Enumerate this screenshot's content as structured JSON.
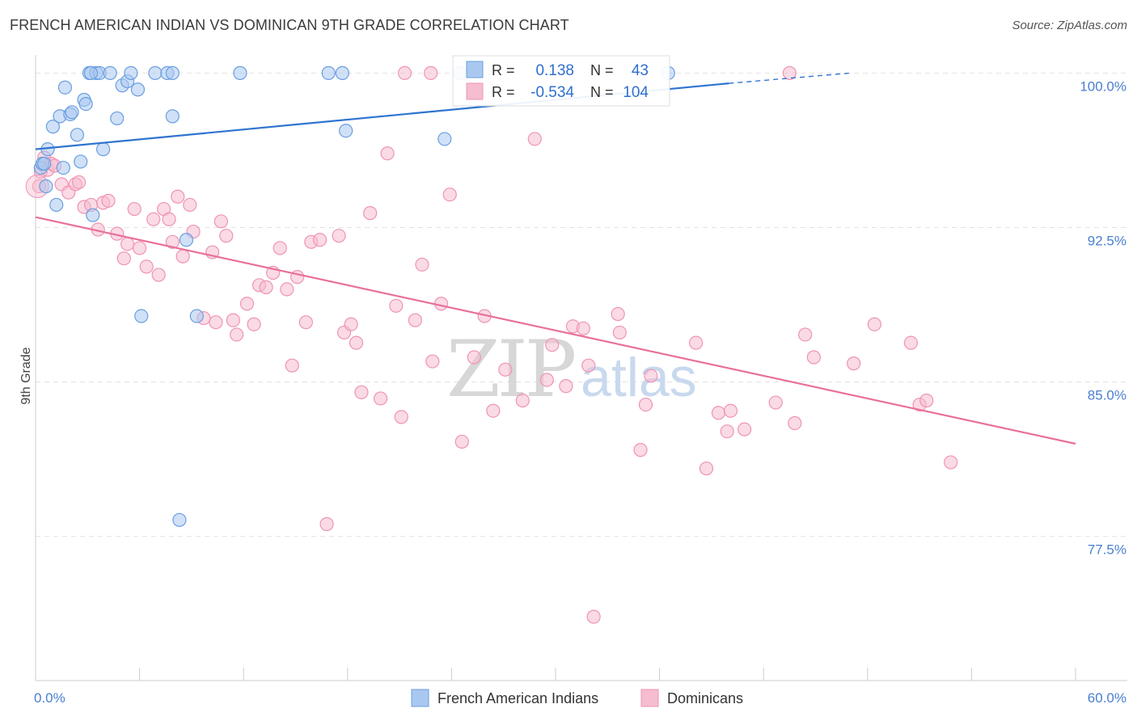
{
  "header": {
    "title": "FRENCH AMERICAN INDIAN VS DOMINICAN 9TH GRADE CORRELATION CHART",
    "source": "Source: ZipAtlas.com"
  },
  "watermark": {
    "zip": "ZIP",
    "atlas": "atlas"
  },
  "stats": {
    "r_label": "R =",
    "n_label": "N =",
    "rows": [
      {
        "r": "0.138",
        "n": "43",
        "color": "#6fa8e8"
      },
      {
        "r": "-0.534",
        "n": "104",
        "color": "#f29bb8"
      }
    ]
  },
  "colors": {
    "blue_fill": "#a9c8f0",
    "blue_stroke": "#6a9ee0",
    "blue_line": "#2f74d0",
    "pink_fill": "#f6bcd0",
    "pink_stroke": "#ee94b4",
    "pink_line": "#e8709c"
  },
  "chart_data": {
    "type": "scatter",
    "title": "FRENCH AMERICAN INDIAN VS DOMINICAN 9TH GRADE CORRELATION CHART",
    "xlabel": "",
    "ylabel": "9th Grade",
    "xlim": [
      0,
      60
    ],
    "ylim": [
      70.5,
      100.8
    ],
    "x_tick_labels": [
      "0.0%",
      "60.0%"
    ],
    "y_ticks": [
      77.5,
      85.0,
      92.5,
      100.0
    ],
    "y_tick_labels": [
      "77.5%",
      "85.0%",
      "92.5%",
      "100.0%"
    ],
    "grid": true,
    "legend_position": "bottom",
    "series": [
      {
        "name": "French American Indians",
        "r": 0.138,
        "n": 43,
        "trend": {
          "x0": 0,
          "y0": 96.3,
          "x1": 40,
          "y1": 99.5,
          "dashed_to_x": 47,
          "dashed_to_y": 100.0
        },
        "points": [
          [
            0.3,
            95.4
          ],
          [
            0.4,
            95.6
          ],
          [
            0.6,
            94.5
          ],
          [
            0.7,
            96.3
          ],
          [
            1.0,
            97.4
          ],
          [
            1.2,
            93.6
          ],
          [
            1.4,
            97.9
          ],
          [
            1.6,
            95.4
          ],
          [
            1.7,
            99.3
          ],
          [
            2.0,
            98.0
          ],
          [
            2.1,
            98.1
          ],
          [
            2.4,
            97.0
          ],
          [
            2.6,
            95.7
          ],
          [
            2.8,
            98.7
          ],
          [
            2.9,
            98.5
          ],
          [
            3.1,
            100.0
          ],
          [
            3.3,
            93.1
          ],
          [
            3.5,
            100.0
          ],
          [
            3.7,
            100.0
          ],
          [
            3.9,
            96.3
          ],
          [
            4.3,
            100.0
          ],
          [
            4.7,
            97.8
          ],
          [
            5.0,
            99.4
          ],
          [
            5.3,
            99.6
          ],
          [
            5.5,
            100.0
          ],
          [
            5.9,
            99.2
          ],
          [
            6.1,
            88.2
          ],
          [
            6.9,
            100.0
          ],
          [
            7.6,
            100.0
          ],
          [
            7.9,
            100.0
          ],
          [
            7.9,
            97.9
          ],
          [
            8.3,
            78.3
          ],
          [
            8.7,
            91.9
          ],
          [
            9.3,
            88.2
          ],
          [
            11.8,
            100.0
          ],
          [
            16.9,
            100.0
          ],
          [
            17.7,
            100.0
          ],
          [
            17.9,
            97.2
          ],
          [
            23.6,
            96.8
          ],
          [
            24.5,
            100.0
          ],
          [
            36.5,
            100.0
          ],
          [
            0.5,
            95.6
          ],
          [
            3.2,
            100.0
          ]
        ]
      },
      {
        "name": "Dominicans",
        "r": -0.534,
        "n": 104,
        "trend": {
          "x0": 0,
          "y0": 93.0,
          "x1": 60,
          "y1": 82.0
        },
        "points": [
          [
            0.2,
            94.5
          ],
          [
            0.3,
            95.2
          ],
          [
            0.5,
            95.9
          ],
          [
            0.7,
            95.3
          ],
          [
            0.9,
            95.6
          ],
          [
            1.1,
            95.5
          ],
          [
            1.5,
            94.6
          ],
          [
            1.9,
            94.2
          ],
          [
            2.3,
            94.6
          ],
          [
            2.5,
            94.7
          ],
          [
            2.8,
            93.5
          ],
          [
            3.2,
            93.6
          ],
          [
            3.6,
            92.4
          ],
          [
            3.9,
            93.7
          ],
          [
            4.2,
            93.8
          ],
          [
            4.7,
            92.2
          ],
          [
            5.1,
            91.0
          ],
          [
            5.3,
            91.7
          ],
          [
            5.7,
            93.4
          ],
          [
            6.0,
            91.5
          ],
          [
            6.4,
            90.6
          ],
          [
            6.8,
            92.9
          ],
          [
            7.1,
            90.2
          ],
          [
            7.4,
            93.4
          ],
          [
            7.7,
            92.9
          ],
          [
            7.9,
            91.8
          ],
          [
            8.2,
            94.0
          ],
          [
            8.5,
            91.1
          ],
          [
            8.9,
            93.6
          ],
          [
            9.1,
            92.3
          ],
          [
            9.7,
            88.1
          ],
          [
            10.2,
            91.3
          ],
          [
            10.4,
            87.9
          ],
          [
            10.7,
            92.8
          ],
          [
            11.0,
            92.1
          ],
          [
            11.4,
            88.0
          ],
          [
            11.6,
            87.3
          ],
          [
            12.2,
            88.8
          ],
          [
            12.6,
            87.8
          ],
          [
            12.9,
            89.7
          ],
          [
            13.3,
            89.6
          ],
          [
            13.7,
            90.3
          ],
          [
            14.1,
            91.5
          ],
          [
            14.5,
            89.5
          ],
          [
            14.8,
            85.8
          ],
          [
            15.1,
            90.1
          ],
          [
            15.6,
            87.9
          ],
          [
            15.9,
            91.8
          ],
          [
            16.4,
            91.9
          ],
          [
            16.8,
            78.1
          ],
          [
            17.5,
            92.1
          ],
          [
            17.8,
            87.4
          ],
          [
            18.2,
            87.8
          ],
          [
            18.5,
            86.9
          ],
          [
            18.8,
            84.5
          ],
          [
            19.3,
            93.2
          ],
          [
            19.9,
            84.2
          ],
          [
            20.3,
            96.1
          ],
          [
            20.8,
            88.7
          ],
          [
            21.1,
            83.3
          ],
          [
            21.9,
            88.0
          ],
          [
            22.3,
            90.7
          ],
          [
            22.9,
            86.0
          ],
          [
            23.4,
            88.8
          ],
          [
            23.9,
            94.1
          ],
          [
            24.6,
            82.1
          ],
          [
            25.3,
            86.2
          ],
          [
            25.9,
            88.2
          ],
          [
            26.4,
            83.6
          ],
          [
            27.1,
            85.6
          ],
          [
            28.1,
            84.1
          ],
          [
            28.8,
            96.8
          ],
          [
            29.5,
            85.1
          ],
          [
            29.8,
            86.8
          ],
          [
            30.6,
            84.8
          ],
          [
            31.0,
            87.7
          ],
          [
            31.6,
            87.6
          ],
          [
            31.9,
            85.8
          ],
          [
            32.2,
            73.6
          ],
          [
            33.6,
            88.3
          ],
          [
            33.7,
            87.4
          ],
          [
            34.9,
            81.7
          ],
          [
            35.2,
            83.9
          ],
          [
            35.5,
            85.3
          ],
          [
            38.1,
            86.9
          ],
          [
            38.7,
            80.8
          ],
          [
            39.4,
            83.5
          ],
          [
            39.9,
            82.6
          ],
          [
            40.1,
            83.6
          ],
          [
            40.9,
            82.7
          ],
          [
            42.7,
            84.0
          ],
          [
            43.5,
            100.0
          ],
          [
            43.8,
            83.0
          ],
          [
            44.4,
            87.3
          ],
          [
            44.9,
            86.2
          ],
          [
            47.2,
            85.9
          ],
          [
            48.4,
            87.8
          ],
          [
            50.5,
            86.9
          ],
          [
            51.0,
            83.9
          ],
          [
            51.4,
            84.1
          ],
          [
            52.8,
            81.1
          ],
          [
            21.3,
            100.0
          ],
          [
            22.8,
            100.0
          ],
          [
            24.5,
            100.0
          ]
        ]
      }
    ]
  },
  "legend": {
    "items": [
      {
        "label": "French American Indians",
        "color": "#a9c8f0"
      },
      {
        "label": "Dominicans",
        "color": "#f6bcd0"
      }
    ]
  }
}
